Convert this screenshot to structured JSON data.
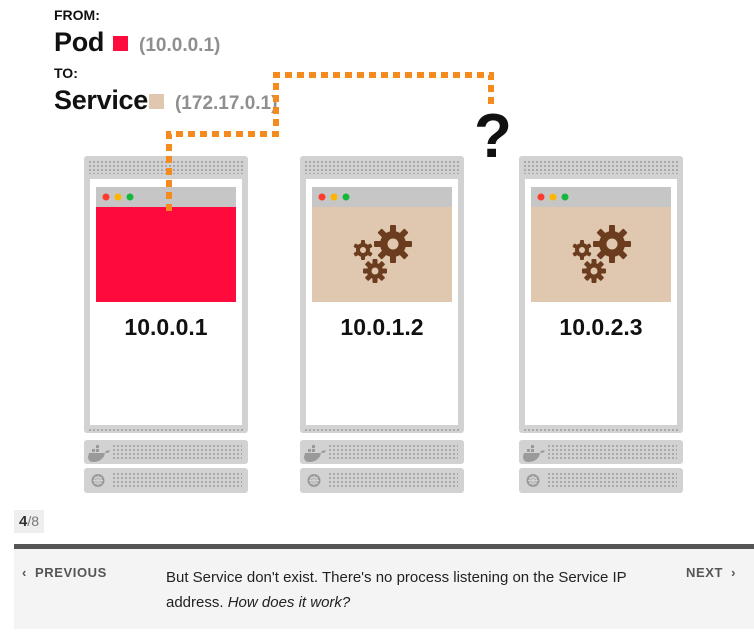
{
  "header": {
    "from_label": "FROM:",
    "from_title": "Pod",
    "from_ip": "(10.0.0.1)",
    "to_label": "TO:",
    "to_title": "Service",
    "to_ip": "(172.17.0.1)"
  },
  "colors": {
    "pod": "#ff0a3c",
    "service": "#e0c7b0",
    "path": "#f58a1f",
    "server": "#cfcfcf",
    "gear": "#6b3d1e"
  },
  "question_mark": "?",
  "nodes": [
    {
      "ip": "10.0.0.1",
      "content": "pod"
    },
    {
      "ip": "10.0.1.2",
      "content": "gears"
    },
    {
      "ip": "10.0.2.3",
      "content": "gears"
    }
  ],
  "pagination": {
    "current": "4",
    "total": "/8"
  },
  "footer": {
    "prev_label": "PREVIOUS",
    "next_label": "NEXT",
    "message_main": "But Service don't exist. There's no process listening on the Service IP address.",
    "message_em": "How does it work?"
  }
}
